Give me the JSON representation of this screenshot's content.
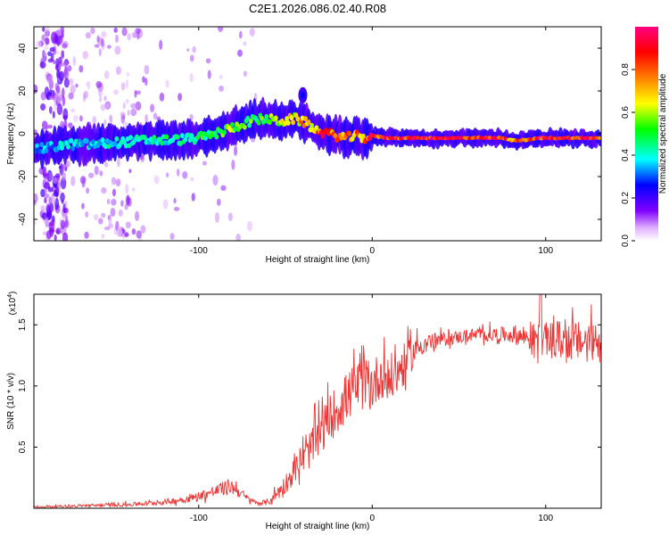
{
  "figure_title": "C2E1.2026.086.02.40.R08",
  "chart_data": [
    {
      "type": "heatmap",
      "name": "spectrogram",
      "title": "C2E1.2026.086.02.40.R08",
      "xlabel": "Height of straight line (km)",
      "ylabel": "Frequency (Hz)",
      "xlim": [
        -195,
        132
      ],
      "ylim": [
        -50,
        50
      ],
      "xticks": [
        -100,
        0,
        100
      ],
      "yticks": [
        -40,
        -20,
        0,
        20,
        40
      ],
      "colorbar": {
        "label": "Normalized spectral amplitude",
        "range": [
          0,
          1
        ],
        "ticks": [
          "0.0",
          "0.2",
          "0.4",
          "0.6",
          "0.8"
        ],
        "tick_values": [
          0.0,
          0.2,
          0.4,
          0.6,
          0.8
        ],
        "colormap": [
          "#ffffff",
          "#e6b3ff",
          "#8000ff",
          "#0000ff",
          "#00ffff",
          "#00ff00",
          "#ffff00",
          "#ff8000",
          "#ff0000",
          "#ff0080"
        ]
      },
      "ridge": {
        "x": [
          -190,
          -175,
          -160,
          -145,
          -130,
          -115,
          -100,
          -90,
          -80,
          -70,
          -62,
          -55,
          -50,
          -45,
          -40,
          -35,
          -30,
          -25,
          -20,
          -15,
          -10,
          -5,
          0,
          10,
          20,
          40,
          60,
          75,
          80,
          85,
          90,
          95,
          100,
          110,
          120,
          132
        ],
        "freq": [
          -7,
          -5,
          -5,
          -4,
          -3,
          -3,
          -2,
          0,
          3,
          6,
          7,
          6,
          6,
          7,
          6,
          3,
          1,
          0,
          -1,
          -2,
          -1,
          -2,
          -1,
          -2,
          -2,
          -2,
          -2,
          -2,
          -3,
          -3,
          -3,
          -2,
          -2,
          -2,
          -2,
          -2
        ],
        "amplitude": [
          0.35,
          0.4,
          0.4,
          0.45,
          0.45,
          0.45,
          0.5,
          0.55,
          0.6,
          0.55,
          0.55,
          0.6,
          0.65,
          0.7,
          0.75,
          0.8,
          0.85,
          0.85,
          0.9,
          0.85,
          0.8,
          0.85,
          0.9,
          0.9,
          0.95,
          0.95,
          0.95,
          0.95,
          0.85,
          0.9,
          0.9,
          0.95,
          0.95,
          0.95,
          0.95,
          0.95
        ]
      }
    },
    {
      "type": "line",
      "name": "snr",
      "xlabel": "Height of straight line (km)",
      "ylabel": "SNR (10 * v/v)",
      "y_multiplier": "(x10",
      "y_multiplier_exp": "4",
      "y_multiplier_close": ")",
      "xlim": [
        -195,
        132
      ],
      "ylim": [
        0,
        1.75
      ],
      "xticks": [
        -100,
        0,
        100
      ],
      "yticks": [
        0.5,
        1.0,
        1.5
      ],
      "ytick_labels": [
        "0.5",
        "1.0",
        "1.5"
      ],
      "color": "#ee3333",
      "envelope": {
        "x": [
          -195,
          -170,
          -140,
          -120,
          -105,
          -95,
          -88,
          -82,
          -78,
          -72,
          -66,
          -60,
          -55,
          -50,
          -45,
          -40,
          -35,
          -30,
          -25,
          -20,
          -15,
          -10,
          -5,
          0,
          5,
          10,
          15,
          20,
          25,
          30,
          40,
          60,
          80,
          90,
          100,
          110,
          120,
          132
        ],
        "base": [
          0.01,
          0.02,
          0.03,
          0.05,
          0.08,
          0.12,
          0.15,
          0.18,
          0.15,
          0.08,
          0.04,
          0.05,
          0.12,
          0.2,
          0.3,
          0.4,
          0.5,
          0.62,
          0.72,
          0.82,
          0.9,
          0.98,
          1.02,
          1.0,
          1.1,
          1.05,
          1.12,
          1.2,
          1.3,
          1.35,
          1.38,
          1.42,
          1.42,
          1.4,
          1.38,
          1.38,
          1.36,
          1.38
        ],
        "noise": [
          0.01,
          0.02,
          0.03,
          0.04,
          0.06,
          0.08,
          0.1,
          0.12,
          0.1,
          0.05,
          0.03,
          0.05,
          0.1,
          0.15,
          0.18,
          0.22,
          0.3,
          0.33,
          0.35,
          0.38,
          0.38,
          0.38,
          0.4,
          0.4,
          0.35,
          0.38,
          0.35,
          0.3,
          0.2,
          0.15,
          0.1,
          0.1,
          0.12,
          0.2,
          0.25,
          0.3,
          0.3,
          0.3
        ]
      },
      "peak": {
        "x": 97,
        "y": 1.75
      }
    }
  ]
}
